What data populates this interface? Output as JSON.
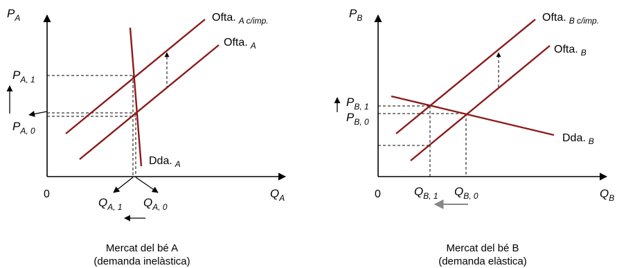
{
  "colors": {
    "curve": "#8b1a1a",
    "axis": "#000000",
    "guide": "#000000",
    "shift_arrow": "#888888"
  },
  "left": {
    "y_axis": "P",
    "y_axis_sub": "A",
    "x_axis": "Q",
    "x_axis_sub": "A",
    "origin": "0",
    "p1": "P",
    "p1_sub": "A, 1",
    "p0": "P",
    "p0_sub": "A, 0",
    "q1": "Q",
    "q1_sub": "A, 1",
    "q0": "Q",
    "q0_sub": "A, 0",
    "supply_tax": "Ofta.",
    "supply_tax_sub": "A c/imp.",
    "supply": "Ofta.",
    "supply_sub": "A",
    "demand": "Dda.",
    "demand_sub": "A",
    "caption_line1": "Mercat del bé A",
    "caption_line2": "(demanda inelàstica)"
  },
  "right": {
    "y_axis": "P",
    "y_axis_sub": "B",
    "x_axis": "Q",
    "x_axis_sub": "B",
    "origin": "0",
    "p1": "P",
    "p1_sub": "B, 1",
    "p0": "P",
    "p0_sub": "B, 0",
    "q1": "Q",
    "q1_sub": "B, 1",
    "q0": "Q",
    "q0_sub": "B, 0",
    "supply_tax": "Ofta.",
    "supply_tax_sub": "B c/imp.",
    "supply": "Ofta.",
    "supply_sub": "B",
    "demand": "Dda.",
    "demand_sub": "B",
    "caption_line1": "Mercat del bé B",
    "caption_line2": "(demanda elàstica)"
  }
}
